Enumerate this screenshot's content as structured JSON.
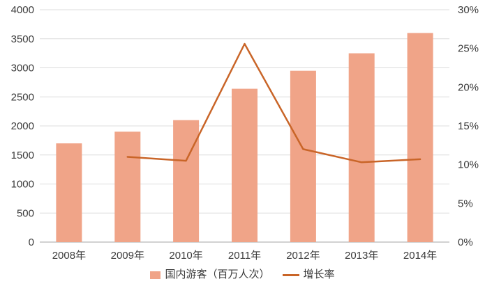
{
  "chart_data": {
    "type": "combo",
    "categories": [
      "2008年",
      "2009年",
      "2010年",
      "2011年",
      "2012年",
      "2013年",
      "2014年"
    ],
    "series": [
      {
        "name": "国内游客（百万人次）",
        "type": "bar",
        "axis": "left",
        "values": [
          1700,
          1900,
          2100,
          2640,
          2950,
          3250,
          3600
        ],
        "color": "#F0A488"
      },
      {
        "name": "增长率",
        "type": "line",
        "axis": "right",
        "values": [
          null,
          11.0,
          10.5,
          25.6,
          12.0,
          10.3,
          10.7
        ],
        "color": "#C96528"
      }
    ],
    "title": "",
    "xlabel": "",
    "ylabel_left": "",
    "ylabel_right": "",
    "left_axis": {
      "min": 0,
      "max": 4000,
      "step": 500,
      "ticks": [
        "0",
        "500",
        "1000",
        "1500",
        "2000",
        "2500",
        "3000",
        "3500",
        "4000"
      ]
    },
    "right_axis": {
      "min": 0,
      "max": 30,
      "step": 5,
      "ticks": [
        "0%",
        "5%",
        "10%",
        "15%",
        "20%",
        "25%",
        "30%"
      ]
    },
    "grid": true,
    "legend_position": "bottom"
  },
  "legend": {
    "bar_label": "国内游客（百万人次）",
    "line_label": "增长率"
  },
  "colors": {
    "bar": "#F0A488",
    "line": "#C96528",
    "grid": "#DCDCDC",
    "axis_line": "#A6A6A6",
    "axis_text": "#3B3B3B",
    "background": "#FFFFFF"
  }
}
